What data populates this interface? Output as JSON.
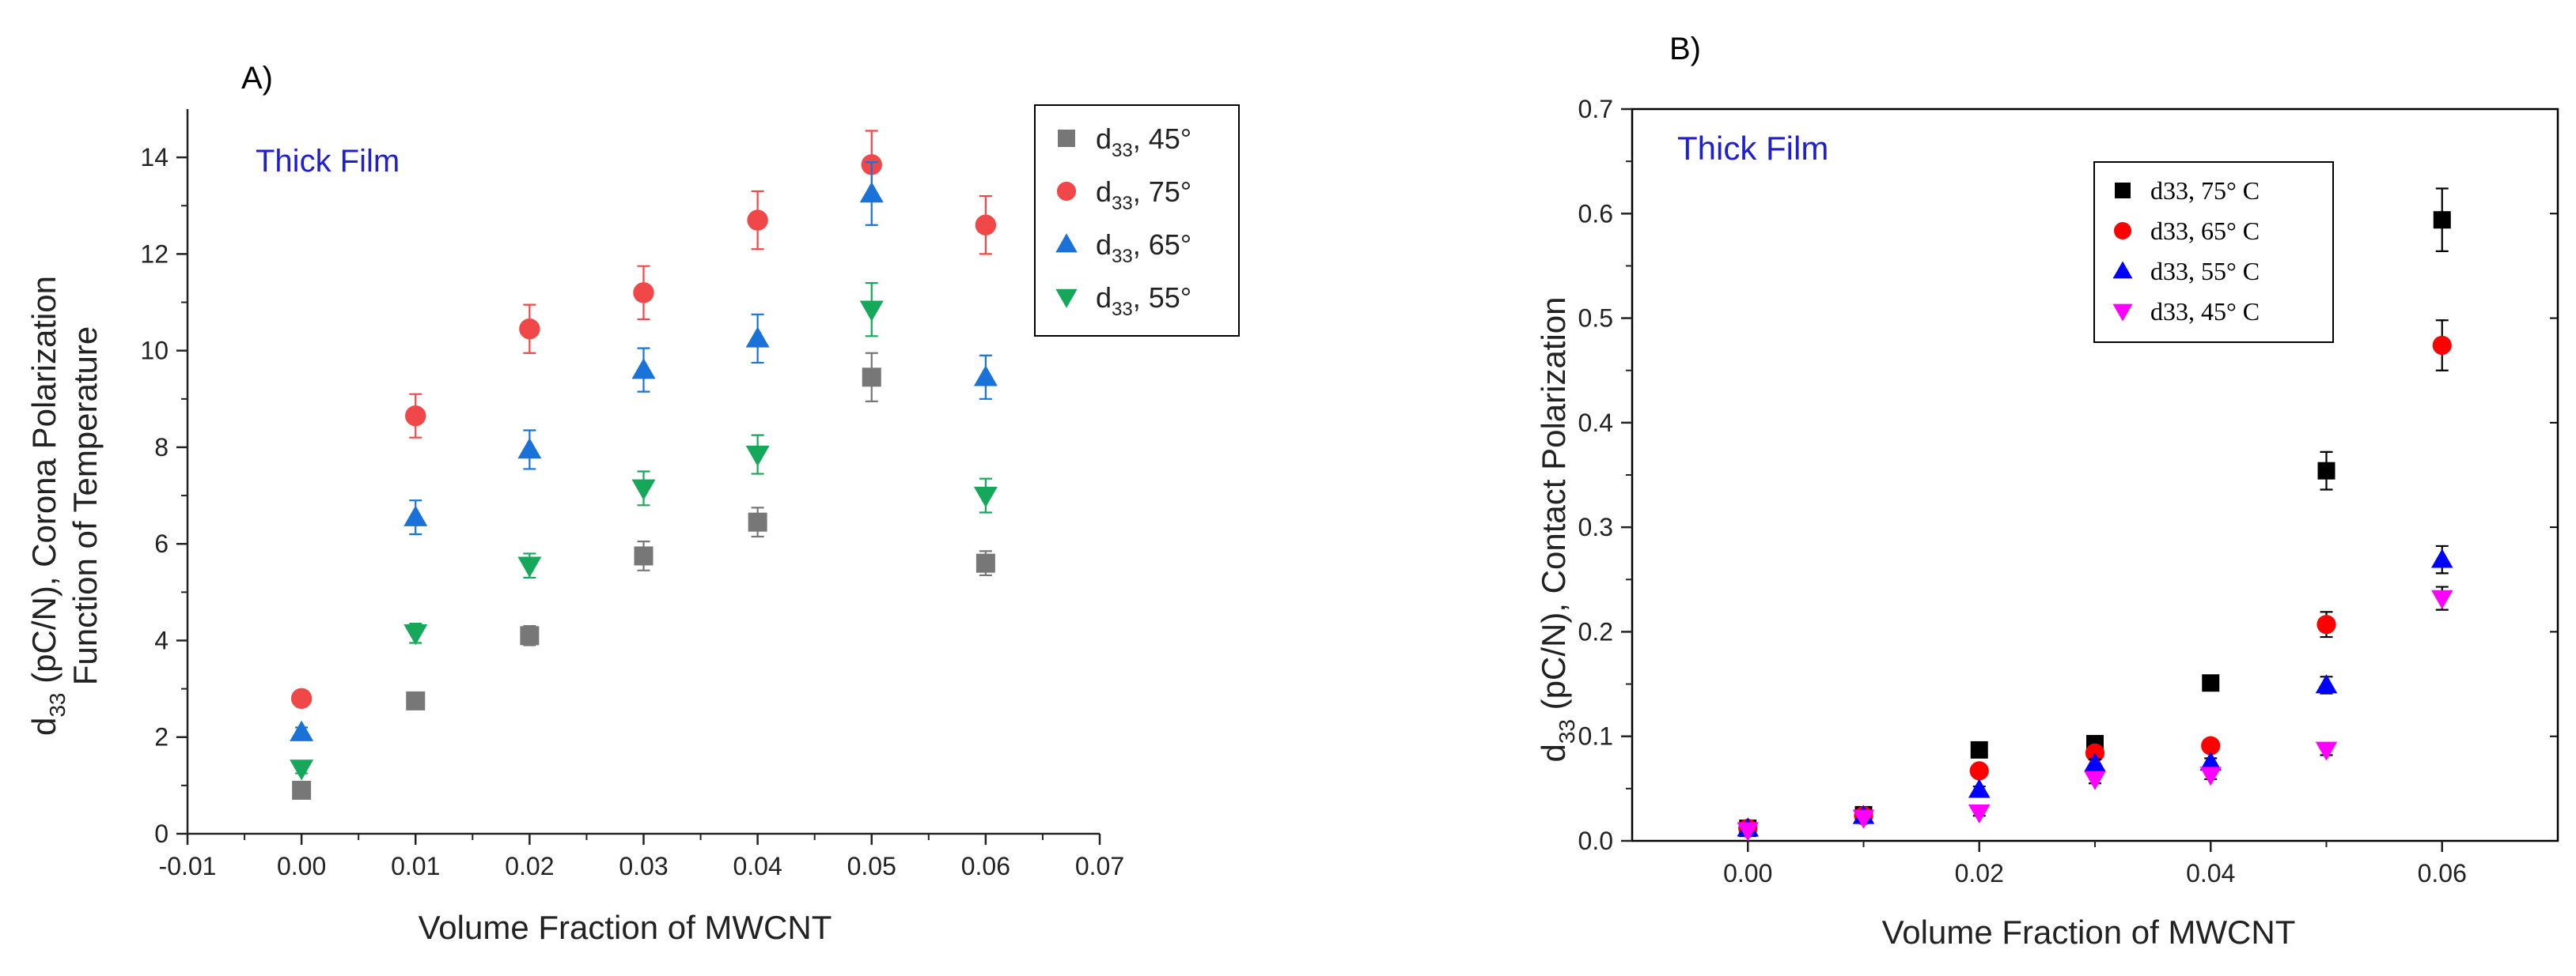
{
  "chart_data": [
    {
      "type": "scatter",
      "panel_label": "A)",
      "annotation": "Thick Film",
      "annotation_color": "#1f1fd0",
      "xlabel": "Volume Fraction of MWCNT",
      "ylabel_line1_prefix": "d",
      "ylabel_line1_sub": "33",
      "ylabel_line1_rest": " (pC/N), Corona Polarization",
      "ylabel_line2": "Function of Temperature",
      "xlim": [
        -0.01,
        0.07
      ],
      "ylim": [
        0,
        15
      ],
      "xticks": [
        -0.01,
        0.0,
        0.01,
        0.02,
        0.03,
        0.04,
        0.05,
        0.06,
        0.07
      ],
      "xtick_labels": [
        "-0.01",
        "0.00",
        "0.01",
        "0.02",
        "0.03",
        "0.04",
        "0.05",
        "0.06",
        "0.07"
      ],
      "yticks": [
        0,
        2,
        4,
        6,
        8,
        10,
        12,
        14
      ],
      "ytick_labels": [
        "0",
        "2",
        "4",
        "6",
        "8",
        "10",
        "12",
        "14"
      ],
      "legend_position": "top-right",
      "x": [
        0.0,
        0.01,
        0.02,
        0.03,
        0.04,
        0.05,
        0.06
      ],
      "series": [
        {
          "name_prefix": "d",
          "name_sub": "33",
          "name_rest": ", 45°",
          "marker": "square",
          "color": "#777777",
          "values": [
            0.9,
            2.75,
            4.1,
            5.75,
            6.45,
            9.45,
            5.6
          ],
          "errors": [
            0.1,
            0.1,
            0.2,
            0.3,
            0.3,
            0.5,
            0.25
          ]
        },
        {
          "name_prefix": "d",
          "name_sub": "33",
          "name_rest": ", 75°",
          "marker": "circle",
          "color": "#f04848",
          "values": [
            2.8,
            8.65,
            10.45,
            11.2,
            12.7,
            13.85,
            12.6
          ],
          "errors": [
            0.1,
            0.45,
            0.5,
            0.55,
            0.6,
            0.7,
            0.6
          ]
        },
        {
          "name_prefix": "d",
          "name_sub": "33",
          "name_rest": ", 65°",
          "marker": "triangle-up",
          "color": "#1a72d8",
          "values": [
            2.1,
            6.55,
            7.95,
            9.6,
            10.25,
            13.25,
            9.45
          ],
          "errors": [
            0.1,
            0.35,
            0.4,
            0.45,
            0.5,
            0.65,
            0.45
          ]
        },
        {
          "name_prefix": "d",
          "name_sub": "33",
          "name_rest": ", 55°",
          "marker": "triangle-down",
          "color": "#16a85a",
          "values": [
            1.35,
            4.15,
            5.55,
            7.15,
            7.85,
            10.85,
            7.0
          ],
          "errors": [
            0.1,
            0.2,
            0.25,
            0.35,
            0.4,
            0.55,
            0.35
          ]
        }
      ]
    },
    {
      "type": "scatter",
      "panel_label": "B)",
      "annotation": "Thick Film",
      "annotation_color": "#1f1fd0",
      "xlabel": "Volume Fraction of MWCNT",
      "ylabel_prefix": "d",
      "ylabel_sub": "33",
      "ylabel_rest": " (pC/N), Contact Polarization",
      "xlim": [
        -0.01,
        0.07
      ],
      "ylim": [
        0,
        0.7
      ],
      "xticks": [
        0.0,
        0.02,
        0.04,
        0.06
      ],
      "xtick_labels": [
        "0.00",
        "0.02",
        "0.04",
        "0.06"
      ],
      "yticks": [
        0,
        0.1,
        0.2,
        0.3,
        0.4,
        0.5,
        0.6,
        0.7
      ],
      "ytick_labels": [
        "0.0",
        "0.1",
        "0.2",
        "0.3",
        "0.4",
        "0.5",
        "0.6",
        "0.7"
      ],
      "legend_position": "top-right",
      "x": [
        0.0,
        0.01,
        0.02,
        0.03,
        0.04,
        0.05,
        0.06
      ],
      "series": [
        {
          "name": "d33, 75° C",
          "marker": "square",
          "color": "#000000",
          "values": [
            0.012,
            0.025,
            0.087,
            0.093,
            0.151,
            0.354,
            0.594
          ],
          "errors": [
            0.002,
            0.003,
            0.004,
            0.005,
            0.004,
            0.018,
            0.03
          ]
        },
        {
          "name": "d33, 65° C",
          "marker": "circle",
          "color": "#ff0000",
          "values": [
            0.012,
            0.024,
            0.067,
            0.084,
            0.091,
            0.207,
            0.474
          ],
          "errors": [
            0.002,
            0.003,
            0.004,
            0.005,
            0.004,
            0.012,
            0.024
          ]
        },
        {
          "name": "d33, 55° C",
          "marker": "triangle-up",
          "color": "#0000ff",
          "values": [
            0.012,
            0.024,
            0.049,
            0.074,
            0.075,
            0.149,
            0.269
          ],
          "errors": [
            0.002,
            0.003,
            0.003,
            0.004,
            0.004,
            0.008,
            0.013
          ]
        },
        {
          "name": "d33, 45° C",
          "marker": "triangle-down",
          "color": "#ff00ff",
          "values": [
            0.01,
            0.022,
            0.027,
            0.059,
            0.063,
            0.087,
            0.232
          ],
          "errors": [
            0.002,
            0.003,
            0.003,
            0.004,
            0.004,
            0.005,
            0.011
          ]
        }
      ]
    }
  ]
}
